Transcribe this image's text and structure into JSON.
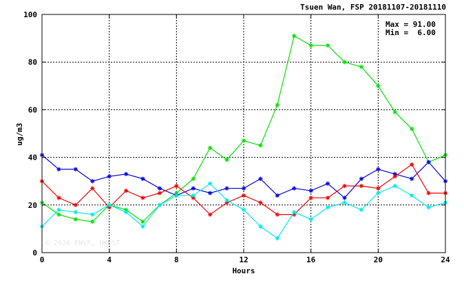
{
  "chart_data": {
    "type": "line",
    "title": "Tsuen Wan, FSP 20181107-20181110",
    "xlabel": "Hours",
    "ylabel": "ug/m3",
    "xlim": [
      0,
      24
    ],
    "ylim": [
      0,
      100
    ],
    "xticks": [
      0,
      4,
      8,
      12,
      16,
      20,
      24
    ],
    "yticks": [
      0,
      20,
      40,
      60,
      80,
      100
    ],
    "grid": true,
    "stats": {
      "max_label": "Max = 91.00",
      "min_label": "Min =  6.00"
    },
    "watermark": "© 2026  ENVF, HKUST",
    "x": [
      0,
      1,
      2,
      3,
      4,
      5,
      6,
      7,
      8,
      9,
      10,
      11,
      12,
      13,
      14,
      15,
      16,
      17,
      18,
      19,
      20,
      21,
      22,
      23,
      24
    ],
    "series": [
      {
        "color": "#00e000",
        "values": [
          21,
          16,
          14,
          13,
          20,
          18,
          13,
          20,
          25,
          31,
          44,
          39,
          47,
          45,
          62,
          91,
          87,
          87,
          80,
          78,
          70,
          59,
          52,
          38,
          41
        ]
      },
      {
        "color": "#0000dd",
        "values": [
          41,
          35,
          35,
          30,
          32,
          33,
          31,
          27,
          24,
          27,
          25,
          27,
          27,
          31,
          24,
          27,
          26,
          29,
          23,
          31,
          35,
          33,
          31,
          38,
          30
        ]
      },
      {
        "color": "#ee0000",
        "values": [
          30,
          23,
          20,
          27,
          19,
          26,
          23,
          25,
          28,
          23,
          16,
          21,
          24,
          21,
          16,
          16,
          23,
          23,
          28,
          28,
          27,
          32,
          37,
          25,
          25
        ]
      },
      {
        "color": "#00e8e8",
        "values": [
          11,
          18,
          17,
          16,
          20,
          17,
          11,
          20,
          24,
          24,
          29,
          22,
          18,
          11,
          6,
          17,
          14,
          19,
          21,
          18,
          25,
          28,
          24,
          19,
          21
        ]
      }
    ]
  }
}
